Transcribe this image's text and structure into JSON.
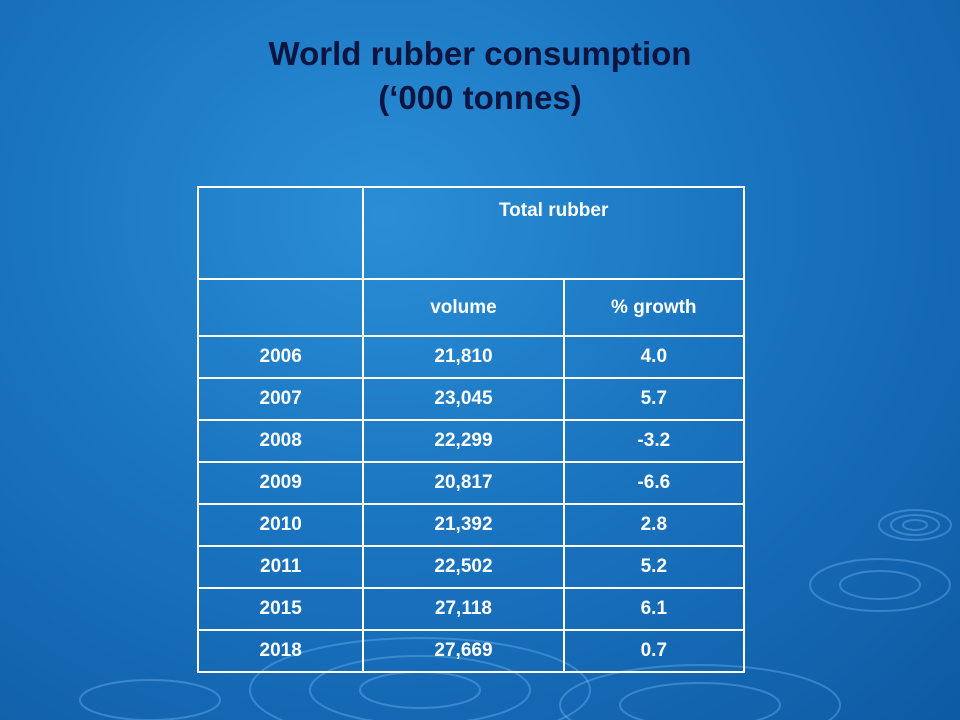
{
  "slide": {
    "title_line1": "World rubber consumption",
    "title_line2": "(‘000 tonnes)"
  },
  "table": {
    "group_header": "Total rubber",
    "col_headers": [
      "volume",
      "% growth"
    ],
    "rows": [
      {
        "year": "2006",
        "volume": "21,810",
        "growth": "4.0"
      },
      {
        "year": "2007",
        "volume": "23,045",
        "growth": "5.7"
      },
      {
        "year": "2008",
        "volume": "22,299",
        "growth": "-3.2"
      },
      {
        "year": "2009",
        "volume": "20,817",
        "growth": "-6.6"
      },
      {
        "year": "2010",
        "volume": "21,392",
        "growth": "2.8"
      },
      {
        "year": "2011",
        "volume": "22,502",
        "growth": "5.2"
      },
      {
        "year": "2015",
        "volume": "27,118",
        "growth": "6.1"
      },
      {
        "year": "2018",
        "volume": "27,669",
        "growth": "0.7"
      }
    ]
  },
  "colors": {
    "background": "#1a74c0",
    "title": "#0b1540",
    "table_text": "#ffffff"
  }
}
